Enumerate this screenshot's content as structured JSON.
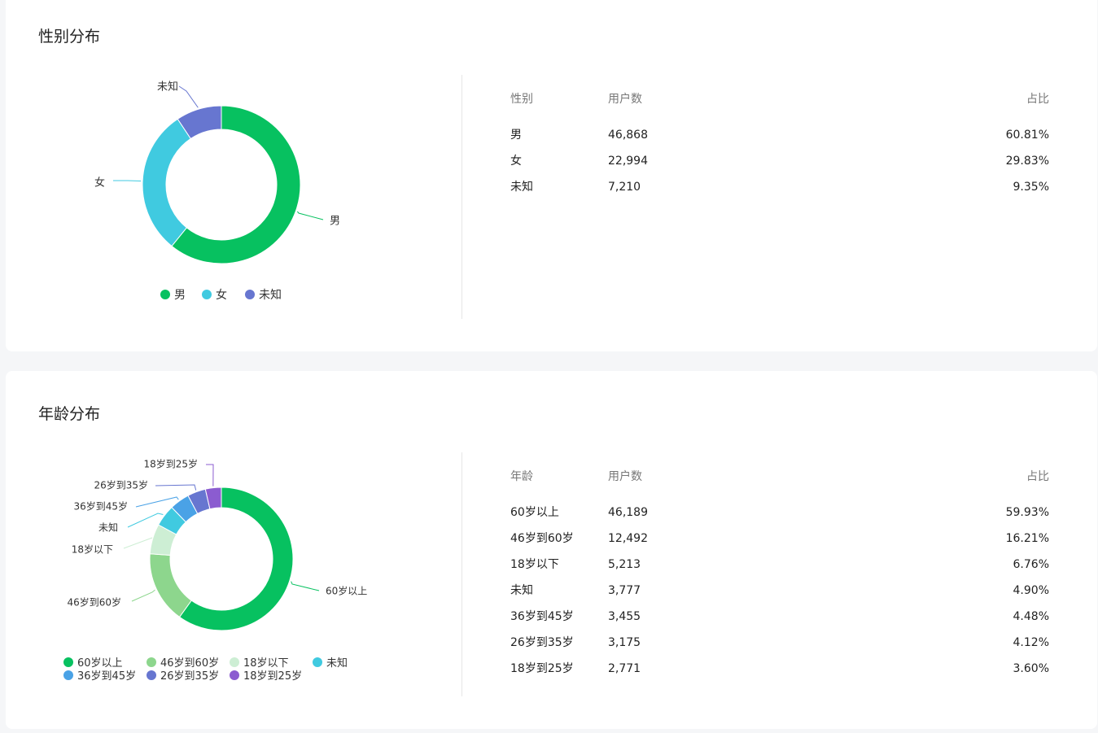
{
  "gender_section": {
    "title": "性别分布",
    "table": {
      "headers": [
        "性别",
        "用户数",
        "占比"
      ],
      "rows": [
        [
          "男",
          "46,868",
          "60.81%"
        ],
        [
          "女",
          "22,994",
          "29.83%"
        ],
        [
          "未知",
          "7,210",
          "9.35%"
        ]
      ]
    }
  },
  "age_section": {
    "title": "年龄分布",
    "table": {
      "headers": [
        "年龄",
        "用户数",
        "占比"
      ],
      "rows": [
        [
          "60岁以上",
          "46,189",
          "59.93%"
        ],
        [
          "46岁到60岁",
          "12,492",
          "16.21%"
        ],
        [
          "18岁以下",
          "5,213",
          "6.76%"
        ],
        [
          "未知",
          "3,777",
          "4.90%"
        ],
        [
          "36岁到45岁",
          "3,455",
          "4.48%"
        ],
        [
          "26岁到35岁",
          "3,175",
          "4.12%"
        ],
        [
          "18岁到25岁",
          "2,771",
          "3.60%"
        ]
      ]
    }
  },
  "chart_data": [
    {
      "type": "pie",
      "variant": "donut",
      "categories": [
        "男",
        "女",
        "未知"
      ],
      "values": [
        46868,
        22994,
        7210
      ],
      "colors": [
        "#07c160",
        "#40cae0",
        "#6776d0"
      ],
      "legend": [
        "男",
        "女",
        "未知"
      ],
      "legend_placement": "bottom"
    },
    {
      "type": "pie",
      "variant": "donut",
      "categories": [
        "60岁以上",
        "46岁到60岁",
        "18岁以下",
        "未知",
        "36岁到45岁",
        "26岁到35岁",
        "18岁到25岁"
      ],
      "values": [
        46189,
        12492,
        5213,
        3777,
        3455,
        3175,
        2771
      ],
      "colors": [
        "#07c160",
        "#8dd68d",
        "#cdeed4",
        "#40cae0",
        "#4aa2e6",
        "#6776d0",
        "#8b5cd0"
      ],
      "legend": [
        "60岁以上",
        "46岁到60岁",
        "18岁以下",
        "未知",
        "36岁到45岁",
        "26岁到35岁",
        "18岁到25岁"
      ],
      "legend_placement": "bottom"
    }
  ]
}
